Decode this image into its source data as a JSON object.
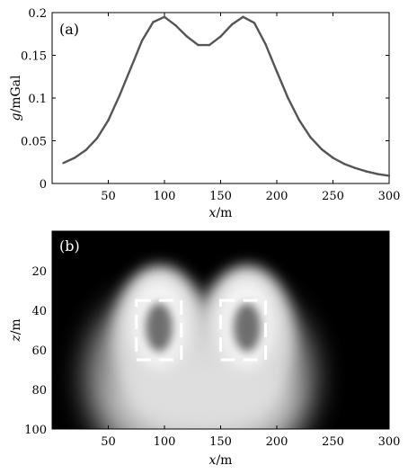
{
  "chart_data": [
    {
      "type": "line",
      "panel_label": "(a)",
      "xlabel_var": "x",
      "xlabel_unit": "/m",
      "ylabel_var": "g",
      "ylabel_unit": "/mGal",
      "xlim": [
        0,
        300
      ],
      "ylim": [
        0,
        0.2
      ],
      "xticks": [
        50,
        100,
        150,
        200,
        250,
        300
      ],
      "xtick_labels": [
        "50",
        "100",
        "150",
        "200",
        "250",
        "300"
      ],
      "yticks": [
        0,
        0.05,
        0.1,
        0.15,
        0.2
      ],
      "ytick_labels": [
        "0",
        "0.05",
        "0.1",
        "0.15",
        "0.2"
      ],
      "grid": false,
      "line_color": "#555555",
      "x": [
        10,
        20,
        30,
        40,
        50,
        60,
        70,
        80,
        90,
        100,
        110,
        120,
        130,
        140,
        150,
        160,
        170,
        180,
        190,
        200,
        210,
        220,
        230,
        240,
        250,
        260,
        270,
        280,
        290,
        300
      ],
      "values": [
        0.024,
        0.03,
        0.039,
        0.053,
        0.074,
        0.103,
        0.135,
        0.167,
        0.189,
        0.195,
        0.185,
        0.172,
        0.162,
        0.162,
        0.172,
        0.186,
        0.195,
        0.188,
        0.163,
        0.131,
        0.1,
        0.074,
        0.054,
        0.04,
        0.03,
        0.023,
        0.018,
        0.014,
        0.011,
        0.009
      ]
    },
    {
      "type": "heatmap",
      "panel_label": "(b)",
      "xlabel_var": "x",
      "xlabel_unit": "/m",
      "ylabel_var": "z",
      "ylabel_unit": "/m",
      "xlim": [
        0,
        300
      ],
      "ylim": [
        100,
        0
      ],
      "xticks": [
        50,
        100,
        150,
        200,
        250,
        300
      ],
      "xtick_labels": [
        "50",
        "100",
        "150",
        "200",
        "250",
        "300"
      ],
      "yticks": [
        20,
        40,
        60,
        80,
        100
      ],
      "ytick_labels": [
        "20",
        "40",
        "60",
        "80",
        "100"
      ],
      "colormap": "gray",
      "background_color": "#000000",
      "bodies": [
        {
          "x_center": 95,
          "z_center": 48
        },
        {
          "x_center": 170,
          "z_center": 48
        }
      ],
      "dashed_boxes": [
        {
          "x0": 75,
          "x1": 115,
          "z0": 35,
          "z1": 65
        },
        {
          "x0": 150,
          "x1": 190,
          "z0": 35,
          "z1": 65
        }
      ],
      "box_color": "#ffffff"
    }
  ]
}
